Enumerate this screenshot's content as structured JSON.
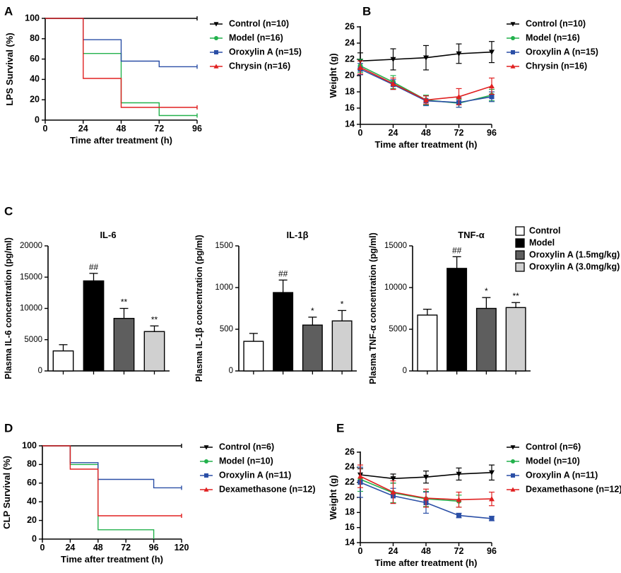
{
  "colors": {
    "control": "#000000",
    "model": "#22b14c",
    "oroxylin": "#2b4fa6",
    "chrysin": "#e02020",
    "dexa": "#e02020",
    "bar_control": "#ffffff",
    "bar_model": "#000000",
    "bar_oro15": "#5e5e5e",
    "bar_oro30": "#d0d0d0"
  },
  "chart_data": [
    {
      "panel": "A",
      "type": "line",
      "subtype": "kaplan-meier",
      "ylabel": "LPS Survival (%)",
      "xlabel": "Time after treatment (h)",
      "xlim": [
        0,
        96
      ],
      "ylim": [
        0,
        100
      ],
      "xticks": [
        0,
        24,
        48,
        72,
        96
      ],
      "yticks": [
        0,
        20,
        40,
        60,
        80,
        100
      ],
      "legend": "right",
      "series": [
        {
          "key": "control",
          "name": "Control (n=10)",
          "points": [
            [
              0,
              100
            ],
            [
              96,
              100
            ]
          ]
        },
        {
          "key": "model",
          "name": "Model (n=16)",
          "points": [
            [
              0,
              100
            ],
            [
              24,
              100
            ],
            [
              24,
              65.5
            ],
            [
              48,
              65.5
            ],
            [
              48,
              17
            ],
            [
              72,
              17
            ],
            [
              72,
              4.5
            ],
            [
              96,
              4.5
            ]
          ]
        },
        {
          "key": "oroxylin",
          "name": "Oroxylin A (n=15)",
          "points": [
            [
              0,
              100
            ],
            [
              24,
              100
            ],
            [
              24,
              79
            ],
            [
              48,
              79
            ],
            [
              48,
              58
            ],
            [
              72,
              58
            ],
            [
              72,
              52.5
            ],
            [
              96,
              52.5
            ]
          ]
        },
        {
          "key": "chrysin",
          "name": "Chrysin (n=16)",
          "points": [
            [
              0,
              100
            ],
            [
              24,
              100
            ],
            [
              24,
              41
            ],
            [
              48,
              41
            ],
            [
              48,
              12.5
            ],
            [
              96,
              12.5
            ]
          ]
        }
      ]
    },
    {
      "panel": "B",
      "type": "line",
      "ylabel": "Weight (g)",
      "xlabel": "Time after treatment (h)",
      "xlim": [
        0,
        96
      ],
      "ylim": [
        14,
        26
      ],
      "xticks": [
        0,
        24,
        48,
        72,
        96
      ],
      "yticks": [
        14,
        16,
        18,
        20,
        22,
        24,
        26
      ],
      "legend": "right",
      "series": [
        {
          "key": "control",
          "marker": "tri-down",
          "name": "Control (n=10)",
          "x": [
            0,
            24,
            48,
            72,
            96
          ],
          "values": [
            21.8,
            22.0,
            22.2,
            22.7,
            22.9
          ],
          "err": [
            1.0,
            1.3,
            1.5,
            1.2,
            1.3
          ]
        },
        {
          "key": "model",
          "marker": "circle",
          "name": "Model (n=16)",
          "x": [
            0,
            24,
            48,
            72,
            96
          ],
          "values": [
            21.2,
            19.2,
            17.0,
            16.6,
            17.6
          ],
          "err": [
            0.8,
            0.8,
            0.6,
            0.5,
            0.7
          ]
        },
        {
          "key": "oroxylin",
          "marker": "square",
          "name": "Oroxylin A (n=15)",
          "x": [
            0,
            24,
            48,
            72,
            96
          ],
          "values": [
            20.8,
            18.9,
            16.9,
            16.7,
            17.4
          ],
          "err": [
            0.7,
            0.6,
            0.6,
            0.6,
            0.6
          ]
        },
        {
          "key": "chrysin",
          "marker": "tri-up",
          "name": "Chrysin (n=16)",
          "x": [
            0,
            24,
            48,
            72,
            96
          ],
          "values": [
            21.0,
            19.0,
            17.0,
            17.4,
            18.7
          ],
          "err": [
            0.8,
            0.7,
            0.5,
            1.0,
            1.0
          ]
        }
      ]
    },
    {
      "panel": "C1",
      "type": "bar",
      "title": "IL-6",
      "ylabel": "Plasma IL-6 concentration (pg/ml)",
      "ylim": [
        0,
        20000
      ],
      "yticks": [
        0,
        5000,
        10000,
        15000,
        20000
      ],
      "bars": [
        {
          "key": "bar_control",
          "value": 3200,
          "err": 1000,
          "label": ""
        },
        {
          "key": "bar_model",
          "value": 14400,
          "err": 1200,
          "label": "##"
        },
        {
          "key": "bar_oro15",
          "value": 8400,
          "err": 1600,
          "label": "**"
        },
        {
          "key": "bar_oro30",
          "value": 6300,
          "err": 900,
          "label": "**"
        }
      ]
    },
    {
      "panel": "C2",
      "type": "bar",
      "title": "IL-1β",
      "ylabel": "Plasma IL-1β concentration (pg/ml)",
      "ylim": [
        0,
        1500
      ],
      "yticks": [
        0,
        500,
        1000,
        1500
      ],
      "bars": [
        {
          "key": "bar_control",
          "value": 355,
          "err": 95,
          "label": ""
        },
        {
          "key": "bar_model",
          "value": 940,
          "err": 150,
          "label": "##"
        },
        {
          "key": "bar_oro15",
          "value": 550,
          "err": 95,
          "label": "*"
        },
        {
          "key": "bar_oro30",
          "value": 600,
          "err": 125,
          "label": "*"
        }
      ]
    },
    {
      "panel": "C3",
      "type": "bar",
      "title": "TNF-α",
      "ylabel": "Plasma TNF-α concentration (pg/ml)",
      "ylim": [
        0,
        15000
      ],
      "yticks": [
        0,
        5000,
        10000,
        15000
      ],
      "bars": [
        {
          "key": "bar_control",
          "value": 6700,
          "err": 700,
          "label": ""
        },
        {
          "key": "bar_model",
          "value": 12300,
          "err": 1400,
          "label": "##"
        },
        {
          "key": "bar_oro15",
          "value": 7500,
          "err": 1300,
          "label": "*"
        },
        {
          "key": "bar_oro30",
          "value": 7600,
          "err": 600,
          "label": "**"
        }
      ],
      "legend": [
        {
          "key": "bar_control",
          "name": "Control"
        },
        {
          "key": "bar_model",
          "name": "Model"
        },
        {
          "key": "bar_oro15",
          "name": "Oroxylin A (1.5mg/kg)"
        },
        {
          "key": "bar_oro30",
          "name": "Oroxylin A (3.0mg/kg)"
        }
      ]
    },
    {
      "panel": "D",
      "type": "line",
      "subtype": "kaplan-meier",
      "ylabel": "CLP Survival (%)",
      "xlabel": "Time after treatment (h)",
      "xlim": [
        0,
        120
      ],
      "ylim": [
        0,
        100
      ],
      "xticks": [
        0,
        24,
        48,
        72,
        96,
        120
      ],
      "yticks": [
        0,
        20,
        40,
        60,
        80,
        100
      ],
      "legend": "right",
      "series": [
        {
          "key": "control",
          "name": "Control (n=6)",
          "points": [
            [
              0,
              100
            ],
            [
              120,
              100
            ]
          ]
        },
        {
          "key": "model",
          "name": "Model (n=10)",
          "points": [
            [
              0,
              100
            ],
            [
              24,
              100
            ],
            [
              24,
              80
            ],
            [
              48,
              80
            ],
            [
              48,
              10
            ],
            [
              96,
              10
            ],
            [
              96,
              0
            ]
          ]
        },
        {
          "key": "oroxylin",
          "name": "Oroxylin A (n=11)",
          "points": [
            [
              0,
              100
            ],
            [
              24,
              100
            ],
            [
              24,
              82
            ],
            [
              48,
              82
            ],
            [
              48,
              64
            ],
            [
              96,
              64
            ],
            [
              96,
              55
            ],
            [
              120,
              55
            ]
          ]
        },
        {
          "key": "dexa",
          "name": "Dexamethasone (n=12)",
          "points": [
            [
              0,
              100
            ],
            [
              24,
              100
            ],
            [
              24,
              75
            ],
            [
              48,
              75
            ],
            [
              48,
              25
            ],
            [
              120,
              25
            ]
          ]
        }
      ]
    },
    {
      "panel": "E",
      "type": "line",
      "ylabel": "Weight (g)",
      "xlabel": "Time after treatment (h)",
      "xlim": [
        0,
        96
      ],
      "ylim": [
        14,
        26
      ],
      "xticks": [
        0,
        24,
        48,
        72,
        96
      ],
      "yticks": [
        14,
        16,
        18,
        20,
        22,
        24,
        26
      ],
      "legend": "right",
      "series": [
        {
          "key": "control",
          "marker": "tri-down",
          "name": "Control (n=6)",
          "x": [
            0,
            24,
            48,
            72,
            96
          ],
          "values": [
            23.0,
            22.5,
            22.7,
            23.1,
            23.3
          ],
          "err": [
            0.8,
            0.6,
            0.8,
            0.8,
            1.0
          ]
        },
        {
          "key": "model",
          "marker": "circle",
          "name": "Model (n=10)",
          "x": [
            0,
            24,
            48,
            72,
            96
          ],
          "values": [
            22.4,
            20.6,
            19.8,
            19.5,
            null
          ],
          "err": [
            1.6,
            1.3,
            1.0,
            0.8,
            0
          ]
        },
        {
          "key": "oroxylin",
          "marker": "square",
          "name": "Oroxylin A (n=11)",
          "x": [
            0,
            24,
            48,
            72,
            96
          ],
          "values": [
            22.0,
            20.2,
            19.3,
            17.6,
            17.2
          ],
          "err": [
            2.0,
            1.0,
            1.4,
            0.3,
            0.3
          ]
        },
        {
          "key": "dexa",
          "marker": "tri-up",
          "name": "Dexamethasone (n=12)",
          "x": [
            0,
            24,
            48,
            72,
            96
          ],
          "values": [
            22.8,
            20.7,
            19.9,
            19.7,
            19.8
          ],
          "err": [
            1.5,
            1.5,
            1.2,
            1.0,
            0.9
          ]
        }
      ]
    }
  ]
}
